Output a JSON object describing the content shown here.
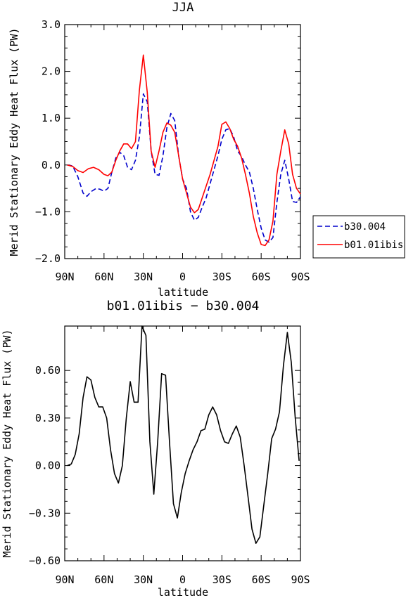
{
  "chart_data": [
    {
      "type": "line",
      "title": "JJA",
      "xlabel": "latitude",
      "ylabel": "Merid Stationary Eddy Heat Flux (PW)",
      "xlim": [
        90,
        -90
      ],
      "ylim": [
        -2.0,
        3.0
      ],
      "xticks": [
        {
          "value": 90,
          "label": "90N"
        },
        {
          "value": 60,
          "label": "60N"
        },
        {
          "value": 30,
          "label": "30N"
        },
        {
          "value": 0,
          "label": "0"
        },
        {
          "value": -30,
          "label": "30S"
        },
        {
          "value": -60,
          "label": "60S"
        },
        {
          "value": -90,
          "label": "90S"
        }
      ],
      "yticks": [
        {
          "value": 3.0,
          "label": "3.0"
        },
        {
          "value": 2.0,
          "label": "2.0"
        },
        {
          "value": 1.0,
          "label": "1.0"
        },
        {
          "value": 0.0,
          "label": "0.0"
        },
        {
          "value": -1.0,
          "label": "−1.0"
        },
        {
          "value": -2.0,
          "label": "−2.0"
        }
      ],
      "legend_position": "right-bottom",
      "series": [
        {
          "name": "b30.004",
          "color": "#0000cc",
          "dash": "dashed",
          "points": [
            [
              88,
              0.0
            ],
            [
              84,
              -0.02
            ],
            [
              80,
              -0.25
            ],
            [
              76,
              -0.6
            ],
            [
              73,
              -0.67
            ],
            [
              70,
              -0.57
            ],
            [
              66,
              -0.5
            ],
            [
              63,
              -0.52
            ],
            [
              60,
              -0.56
            ],
            [
              57,
              -0.5
            ],
            [
              54,
              -0.15
            ],
            [
              51,
              0.15
            ],
            [
              48,
              0.27
            ],
            [
              45,
              0.2
            ],
            [
              42,
              -0.05
            ],
            [
              39,
              -0.1
            ],
            [
              36,
              0.1
            ],
            [
              33,
              0.6
            ],
            [
              30,
              1.52
            ],
            [
              27,
              1.35
            ],
            [
              24,
              0.3
            ],
            [
              21,
              -0.2
            ],
            [
              18,
              -0.22
            ],
            [
              15,
              0.2
            ],
            [
              12,
              0.8
            ],
            [
              9,
              1.1
            ],
            [
              6,
              0.95
            ],
            [
              3,
              0.2
            ],
            [
              0,
              -0.3
            ],
            [
              -3,
              -0.5
            ],
            [
              -6,
              -1.0
            ],
            [
              -9,
              -1.18
            ],
            [
              -12,
              -1.12
            ],
            [
              -15,
              -0.9
            ],
            [
              -18,
              -0.7
            ],
            [
              -21,
              -0.4
            ],
            [
              -24,
              -0.1
            ],
            [
              -27,
              0.2
            ],
            [
              -30,
              0.55
            ],
            [
              -33,
              0.75
            ],
            [
              -36,
              0.78
            ],
            [
              -39,
              0.6
            ],
            [
              -42,
              0.3
            ],
            [
              -45,
              0.18
            ],
            [
              -48,
              0.0
            ],
            [
              -51,
              -0.15
            ],
            [
              -54,
              -0.5
            ],
            [
              -57,
              -0.95
            ],
            [
              -60,
              -1.35
            ],
            [
              -63,
              -1.6
            ],
            [
              -66,
              -1.65
            ],
            [
              -69,
              -1.55
            ],
            [
              -72,
              -0.8
            ],
            [
              -75,
              -0.2
            ],
            [
              -78,
              0.1
            ],
            [
              -81,
              -0.3
            ],
            [
              -84,
              -0.78
            ],
            [
              -87,
              -0.8
            ],
            [
              -90,
              -0.68
            ],
            [
              -93,
              -0.35
            ],
            [
              -96,
              -0.08
            ]
          ]
        },
        {
          "name": "b01.01ibis",
          "color": "#ff0000",
          "dash": "solid",
          "points": [
            [
              88,
              0.0
            ],
            [
              84,
              -0.03
            ],
            [
              80,
              -0.12
            ],
            [
              76,
              -0.16
            ],
            [
              72,
              -0.08
            ],
            [
              68,
              -0.05
            ],
            [
              64,
              -0.1
            ],
            [
              60,
              -0.2
            ],
            [
              57,
              -0.23
            ],
            [
              54,
              -0.15
            ],
            [
              51,
              0.1
            ],
            [
              48,
              0.3
            ],
            [
              45,
              0.45
            ],
            [
              42,
              0.45
            ],
            [
              39,
              0.35
            ],
            [
              36,
              0.5
            ],
            [
              33,
              1.6
            ],
            [
              30,
              2.35
            ],
            [
              27,
              1.55
            ],
            [
              24,
              0.3
            ],
            [
              21,
              -0.05
            ],
            [
              18,
              0.3
            ],
            [
              15,
              0.7
            ],
            [
              12,
              0.9
            ],
            [
              9,
              0.85
            ],
            [
              6,
              0.7
            ],
            [
              3,
              0.2
            ],
            [
              0,
              -0.3
            ],
            [
              -3,
              -0.6
            ],
            [
              -6,
              -0.9
            ],
            [
              -9,
              -1.02
            ],
            [
              -12,
              -0.95
            ],
            [
              -15,
              -0.7
            ],
            [
              -18,
              -0.45
            ],
            [
              -21,
              -0.2
            ],
            [
              -24,
              0.1
            ],
            [
              -27,
              0.4
            ],
            [
              -30,
              0.87
            ],
            [
              -33,
              0.92
            ],
            [
              -36,
              0.78
            ],
            [
              -39,
              0.55
            ],
            [
              -42,
              0.4
            ],
            [
              -45,
              0.15
            ],
            [
              -48,
              -0.2
            ],
            [
              -51,
              -0.6
            ],
            [
              -54,
              -1.1
            ],
            [
              -57,
              -1.45
            ],
            [
              -60,
              -1.7
            ],
            [
              -63,
              -1.72
            ],
            [
              -66,
              -1.6
            ],
            [
              -69,
              -1.2
            ],
            [
              -72,
              -0.2
            ],
            [
              -75,
              0.3
            ],
            [
              -78,
              0.75
            ],
            [
              -81,
              0.45
            ],
            [
              -84,
              -0.2
            ],
            [
              -87,
              -0.5
            ],
            [
              -90,
              -0.62
            ],
            [
              -93,
              -0.45
            ],
            [
              -96,
              -0.1
            ]
          ]
        }
      ]
    },
    {
      "type": "line",
      "title": "b01.01ibis − b30.004",
      "xlabel": "latitude",
      "ylabel": "Merid Stationary Eddy Heat Flux (PW)",
      "xlim": [
        90,
        -90
      ],
      "ylim": [
        -0.6,
        0.88
      ],
      "xticks": [
        {
          "value": 90,
          "label": "90N"
        },
        {
          "value": 60,
          "label": "60N"
        },
        {
          "value": 30,
          "label": "30N"
        },
        {
          "value": 0,
          "label": "0"
        },
        {
          "value": -30,
          "label": "30S"
        },
        {
          "value": -60,
          "label": "60S"
        },
        {
          "value": -90,
          "label": "90S"
        }
      ],
      "yticks": [
        {
          "value": 0.6,
          "label": "0.60"
        },
        {
          "value": 0.3,
          "label": "0.30"
        },
        {
          "value": 0.0,
          "label": "0.00"
        },
        {
          "value": -0.3,
          "label": "−0.30"
        },
        {
          "value": -0.6,
          "label": "−0.60"
        }
      ],
      "series": [
        {
          "color": "#000000",
          "dash": "solid",
          "points": [
            [
              88,
              0.0
            ],
            [
              85,
              0.01
            ],
            [
              82,
              0.07
            ],
            [
              79,
              0.2
            ],
            [
              76,
              0.43
            ],
            [
              73,
              0.56
            ],
            [
              70,
              0.54
            ],
            [
              67,
              0.43
            ],
            [
              64,
              0.37
            ],
            [
              61,
              0.37
            ],
            [
              58,
              0.3
            ],
            [
              55,
              0.1
            ],
            [
              52,
              -0.05
            ],
            [
              49,
              -0.11
            ],
            [
              46,
              0.0
            ],
            [
              43,
              0.3
            ],
            [
              40,
              0.53
            ],
            [
              37,
              0.4
            ],
            [
              34,
              0.4
            ],
            [
              31,
              0.88
            ],
            [
              28,
              0.82
            ],
            [
              25,
              0.15
            ],
            [
              22,
              -0.18
            ],
            [
              19,
              0.15
            ],
            [
              16,
              0.58
            ],
            [
              13,
              0.57
            ],
            [
              10,
              0.15
            ],
            [
              7,
              -0.24
            ],
            [
              4,
              -0.33
            ],
            [
              1,
              -0.17
            ],
            [
              -2,
              -0.05
            ],
            [
              -5,
              0.03
            ],
            [
              -8,
              0.1
            ],
            [
              -11,
              0.15
            ],
            [
              -14,
              0.22
            ],
            [
              -17,
              0.23
            ],
            [
              -20,
              0.32
            ],
            [
              -23,
              0.37
            ],
            [
              -26,
              0.32
            ],
            [
              -29,
              0.22
            ],
            [
              -32,
              0.15
            ],
            [
              -35,
              0.14
            ],
            [
              -38,
              0.2
            ],
            [
              -41,
              0.25
            ],
            [
              -44,
              0.18
            ],
            [
              -47,
              0.0
            ],
            [
              -50,
              -0.2
            ],
            [
              -53,
              -0.4
            ],
            [
              -56,
              -0.49
            ],
            [
              -59,
              -0.45
            ],
            [
              -62,
              -0.25
            ],
            [
              -65,
              -0.05
            ],
            [
              -68,
              0.17
            ],
            [
              -71,
              0.23
            ],
            [
              -74,
              0.34
            ],
            [
              -77,
              0.63
            ],
            [
              -80,
              0.84
            ],
            [
              -83,
              0.65
            ],
            [
              -86,
              0.3
            ],
            [
              -89,
              0.03
            ],
            [
              -92,
              -0.06
            ],
            [
              -95,
              -0.03
            ]
          ]
        }
      ]
    }
  ]
}
